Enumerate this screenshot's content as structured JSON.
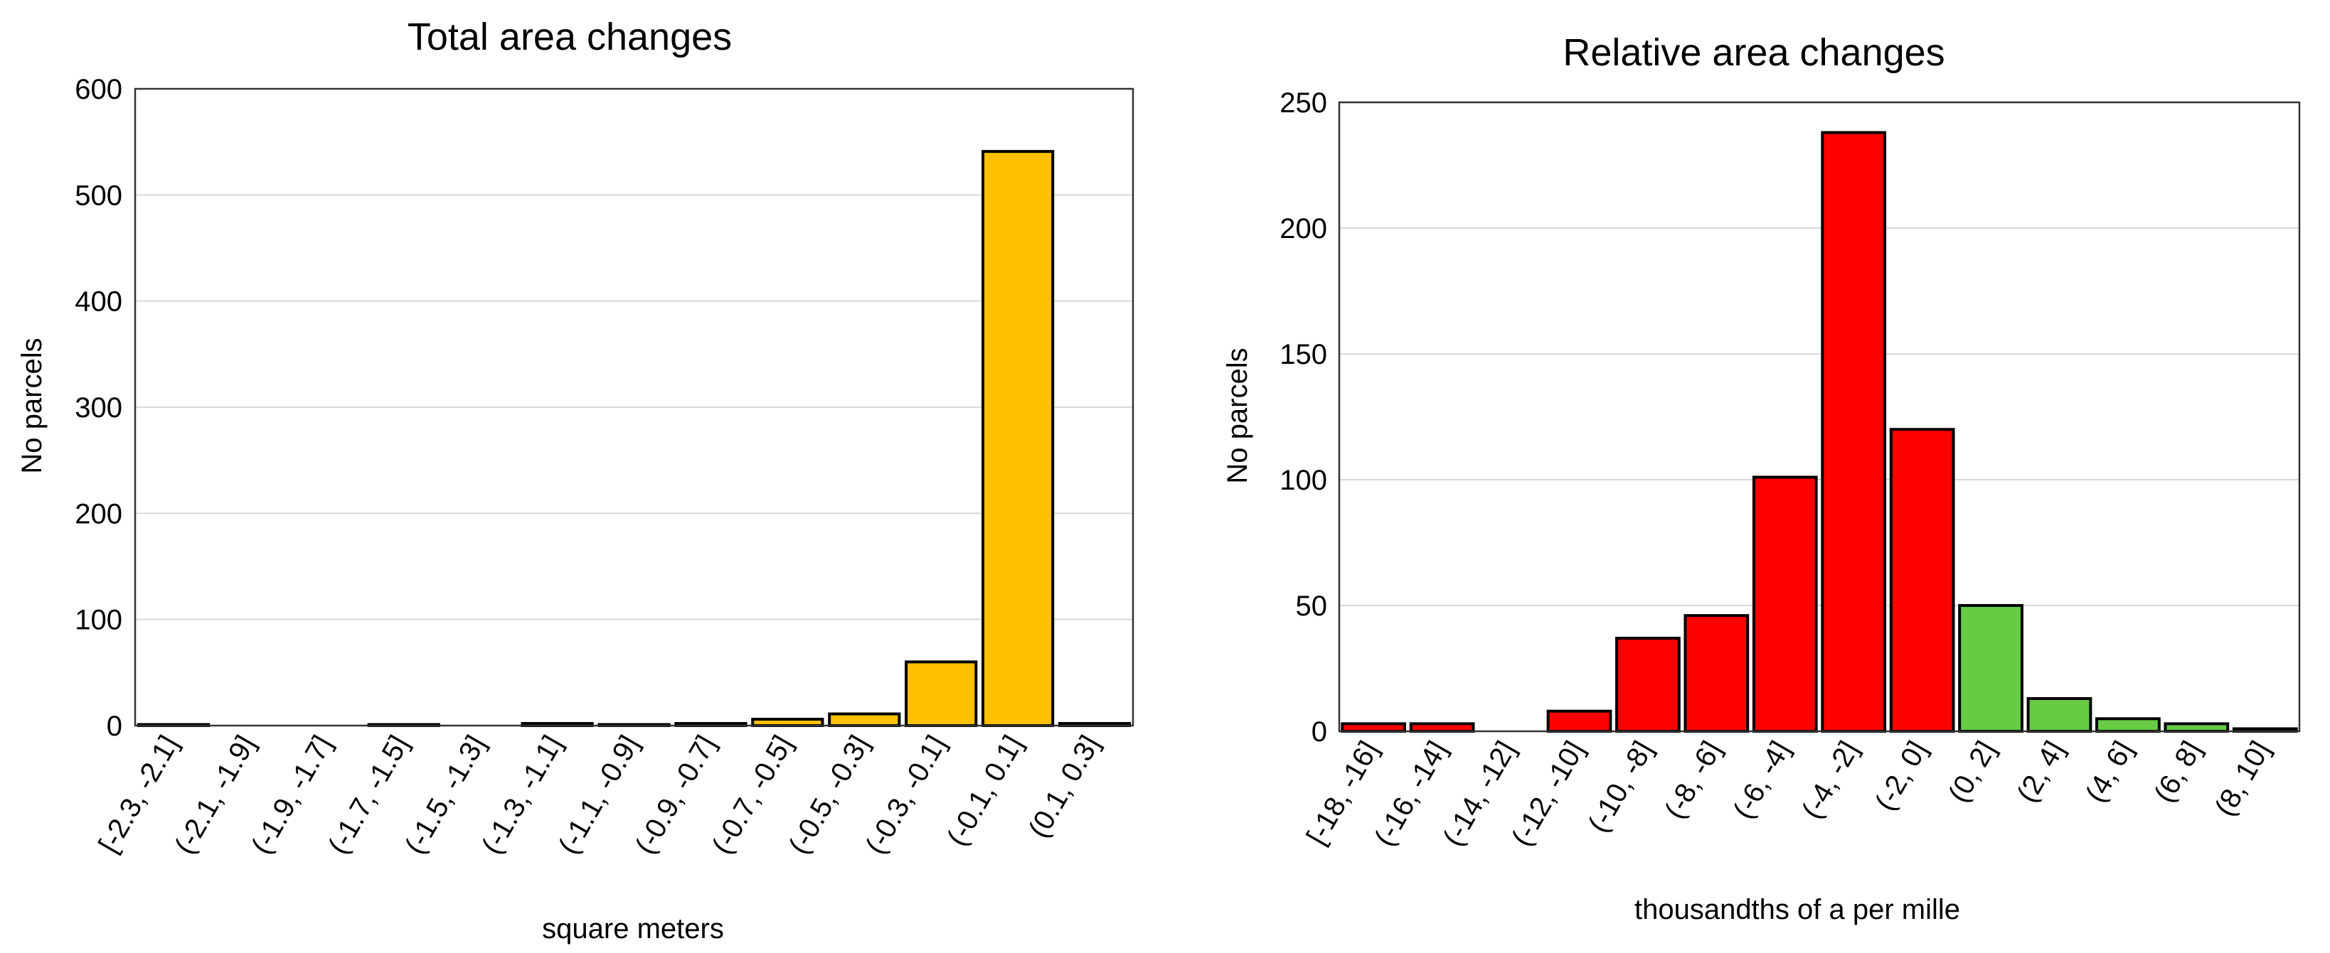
{
  "chart_data": [
    {
      "type": "bar",
      "title": "Total area changes",
      "xlabel": "square meters",
      "ylabel": "No parcels",
      "ylim": [
        0,
        600
      ],
      "yticks": [
        0,
        100,
        200,
        300,
        400,
        500,
        600
      ],
      "grid": true,
      "categories": [
        "[-2.3, -2.1]",
        "(-2.1, -1.9]",
        "(-1.9, -1.7]",
        "(-1.7, -1.5]",
        "(-1.5, -1.3]",
        "(-1.3, -1.1]",
        "(-1.1, -0.9]",
        "(-0.9, -0.7]",
        "(-0.7, -0.5]",
        "(-0.5, -0.3]",
        "(-0.3, -0.1]",
        "(-0.1, 0.1]",
        "(0.1, 0.3]"
      ],
      "values": [
        1,
        0,
        0,
        1,
        0,
        2,
        1,
        2,
        6,
        11,
        60,
        541,
        2
      ],
      "colors": [
        "#FFC000",
        "#FFC000",
        "#FFC000",
        "#FFC000",
        "#FFC000",
        "#FFC000",
        "#FFC000",
        "#FFC000",
        "#FFC000",
        "#FFC000",
        "#FFC000",
        "#FFC000",
        "#FFC000"
      ]
    },
    {
      "type": "bar",
      "title": "Relative area changes",
      "xlabel": "thousandths of a per mille",
      "ylabel": "No parcels",
      "ylim": [
        0,
        250
      ],
      "yticks": [
        0,
        50,
        100,
        150,
        200,
        250
      ],
      "grid": true,
      "categories": [
        "[-18, -16]",
        "(-16, -14]",
        "(-14, -12]",
        "(-12, -10]",
        "(-10, -8]",
        "(-8, -6]",
        "(-6, -4]",
        "(-4, -2]",
        "(-2, 0]",
        "(0, 2]",
        "(2, 4]",
        "(4, 6]",
        "(6, 8]",
        "(8, 10]"
      ],
      "values": [
        3,
        3,
        0,
        8,
        37,
        46,
        101,
        238,
        120,
        50,
        13,
        5,
        3,
        1
      ],
      "colors": [
        "#FF0000",
        "#FF0000",
        "#FF0000",
        "#FF0000",
        "#FF0000",
        "#FF0000",
        "#FF0000",
        "#FF0000",
        "#FF0000",
        "#66CC44",
        "#66CC44",
        "#66CC44",
        "#66CC44",
        "#66CC44"
      ]
    }
  ]
}
